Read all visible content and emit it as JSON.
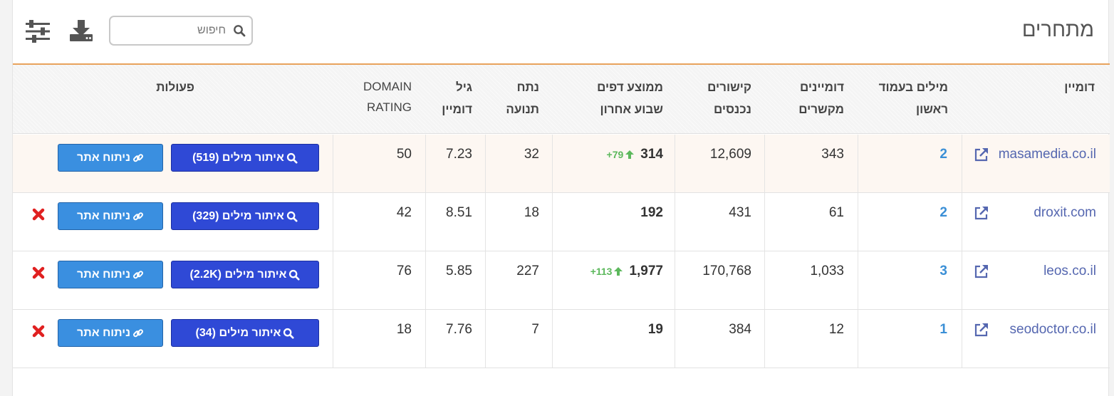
{
  "page": {
    "title": "מתחרים"
  },
  "toolbar": {
    "search_placeholder": "חיפוש",
    "search_value": "",
    "download_icon": "download-icon",
    "filter_icon": "sliders-icon"
  },
  "table": {
    "headers": {
      "domain": "דומיין",
      "first_page_words_1": "מילים בעמוד",
      "first_page_words_2": "ראשון",
      "linking_domains_1": "דומיינים",
      "linking_domains_2": "מקשרים",
      "inbound_links_1": "קישורים",
      "inbound_links_2": "נכנסים",
      "avg_pages_1": "ממוצע דפים",
      "avg_pages_2": "שבוע אחרון",
      "traffic_1": "נתח",
      "traffic_2": "תנועה",
      "domain_age_1": "גיל",
      "domain_age_2": "דומיין",
      "domain_rating_1": "DOMAIN",
      "domain_rating_2": "RATING",
      "actions": "פעולות"
    },
    "rows": [
      {
        "domain": "masamedia.co.il",
        "first_page_words": "2",
        "linking_domains": "343",
        "inbound_links": "12,609",
        "avg_pages": "314",
        "avg_delta": "+79",
        "traffic": "32",
        "domain_age": "7.23",
        "domain_rating": "50",
        "keyword_btn": "איתור מילים (519)",
        "analyze_btn": "ניתוח אתר",
        "deletable": false,
        "highlight": true
      },
      {
        "domain": "droxit.com",
        "first_page_words": "2",
        "linking_domains": "61",
        "inbound_links": "431",
        "avg_pages": "192",
        "avg_delta": "",
        "traffic": "18",
        "domain_age": "8.51",
        "domain_rating": "42",
        "keyword_btn": "איתור מילים (329)",
        "analyze_btn": "ניתוח אתר",
        "deletable": true,
        "highlight": false
      },
      {
        "domain": "leos.co.il",
        "first_page_words": "3",
        "linking_domains": "1,033",
        "inbound_links": "170,768",
        "avg_pages": "1,977",
        "avg_delta": "+113",
        "traffic": "227",
        "domain_age": "5.85",
        "domain_rating": "76",
        "keyword_btn": "איתור מילים (2.2K)",
        "analyze_btn": "ניתוח אתר",
        "deletable": true,
        "highlight": false
      },
      {
        "domain": "seodoctor.co.il",
        "first_page_words": "1",
        "linking_domains": "12",
        "inbound_links": "384",
        "avg_pages": "19",
        "avg_delta": "",
        "traffic": "7",
        "domain_age": "7.76",
        "domain_rating": "18",
        "keyword_btn": "איתור מילים (34)",
        "analyze_btn": "ניתוח אתר",
        "deletable": true,
        "highlight": false
      }
    ]
  },
  "colors": {
    "accent_line": "#e8a25c",
    "primary_button": "#2f49d6",
    "info_button": "#3a8fe0",
    "link": "#5567b0",
    "keyword_count": "#3a8fd6",
    "positive_delta": "#5cb85c",
    "delete": "#e02020"
  }
}
